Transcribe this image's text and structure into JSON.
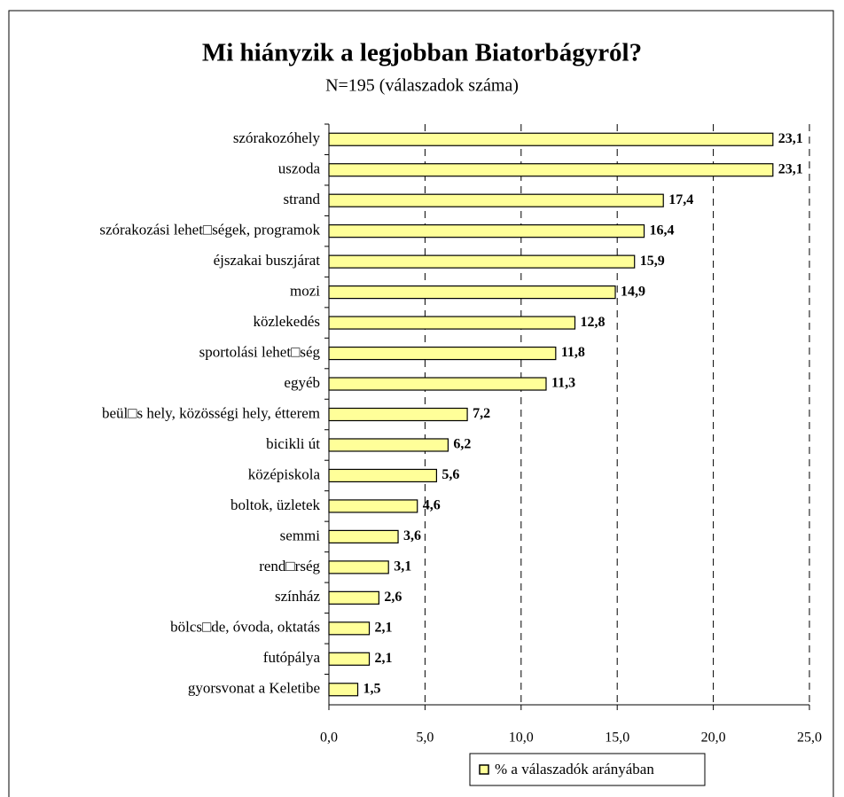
{
  "chart_data": {
    "type": "hbar",
    "title": "Mi hiányzik a legjobban Biatorbágyról?",
    "subtitle": "N=195 (válaszadok száma)",
    "categories": [
      "szórakozóhely",
      "uszoda",
      "strand",
      "szórakozási lehet□ségek, programok",
      "éjszakai buszjárat",
      "mozi",
      "közlekedés",
      "sportolási lehet□ség",
      "egyéb",
      "beül□s hely, közösségi hely, étterem",
      "bicikli út",
      "középiskola",
      "boltok, üzletek",
      "semmi",
      "rend□rség",
      "színház",
      "bölcs□de, óvoda, oktatás",
      "futópálya",
      "gyorsvonat a Keletibe"
    ],
    "series": [
      {
        "name": "% a válaszadók arányában",
        "color": "#ffff99",
        "values": [
          23.1,
          23.1,
          17.4,
          16.4,
          15.9,
          14.9,
          12.8,
          11.8,
          11.3,
          7.2,
          6.2,
          5.6,
          4.6,
          3.6,
          3.1,
          2.6,
          2.1,
          2.1,
          1.5
        ],
        "value_labels": [
          "23,1",
          "23,1",
          "17,4",
          "16,4",
          "15,9",
          "14,9",
          "12,8",
          "11,8",
          "11,3",
          "7,2",
          "6,2",
          "5,6",
          "4,6",
          "3,6",
          "3,1",
          "2,6",
          "2,1",
          "2,1",
          "1,5"
        ]
      }
    ],
    "xlim": [
      0,
      25
    ],
    "xticks": [
      {
        "value": 0,
        "label": "0,0"
      },
      {
        "value": 5,
        "label": "5,0"
      },
      {
        "value": 10,
        "label": "10,0"
      },
      {
        "value": 15,
        "label": "15,0"
      },
      {
        "value": 20,
        "label": "20,0"
      },
      {
        "value": 25,
        "label": "25,0"
      }
    ],
    "grid": true,
    "legend": "bottom"
  }
}
